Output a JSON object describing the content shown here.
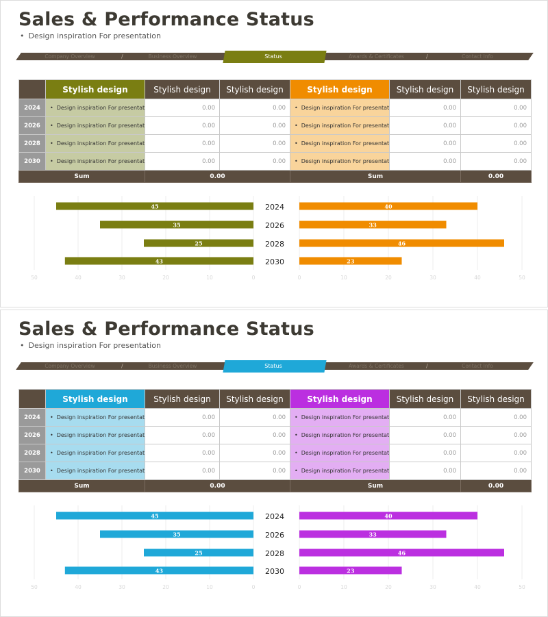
{
  "slides": [
    {
      "title": "Sales & Performance Status",
      "subtitle": "Design inspiration For presentation",
      "nav": [
        "Company Overview",
        "Business Overview",
        "Status",
        "Awards & Certificates",
        "Contact Info"
      ],
      "nav_active": "Status",
      "colors": {
        "left_accent": "#7a7e12",
        "left_light": "#c6cba3",
        "right_accent": "#f08c00",
        "right_light": "#f9d49b"
      },
      "table": {
        "left_headers": [
          "Stylish design",
          "Stylish design",
          "Stylish design"
        ],
        "right_headers": [
          "Stylish design",
          "Stylish design",
          "Stylish design"
        ],
        "rows": [
          {
            "year": "2024",
            "left_desc": "Design inspiration For presentation",
            "left_v1": "0.00",
            "left_v2": "0.00",
            "right_desc": "Design inspiration For presentation",
            "right_v1": "0.00",
            "right_v2": "0.00"
          },
          {
            "year": "2026",
            "left_desc": "Design inspiration For presentation",
            "left_v1": "0.00",
            "left_v2": "0.00",
            "right_desc": "Design inspiration For presentation",
            "right_v1": "0.00",
            "right_v2": "0.00"
          },
          {
            "year": "2028",
            "left_desc": "Design inspiration For presentation",
            "left_v1": "0.00",
            "left_v2": "0.00",
            "right_desc": "Design inspiration For presentation",
            "right_v1": "0.00",
            "right_v2": "0.00"
          },
          {
            "year": "2030",
            "left_desc": "Design inspiration For presentation",
            "left_v1": "0.00",
            "left_v2": "0.00",
            "right_desc": "Design inspiration For presentation",
            "right_v1": "0.00",
            "right_v2": "0.00"
          }
        ],
        "sum_label_left": "Sum",
        "sum_value_left": "0.00",
        "sum_label_right": "Sum",
        "sum_value_right": "0.00"
      }
    },
    {
      "title": "Sales & Performance Status",
      "subtitle": "Design inspiration For presentation",
      "nav": [
        "Company Overview",
        "Business Overview",
        "Status",
        "Awards & Certificates",
        "Contact Info"
      ],
      "nav_active": "Status",
      "colors": {
        "left_accent": "#1fa8d8",
        "left_light": "#a7dcef",
        "right_accent": "#bb2fe0",
        "right_light": "#e3aef3"
      },
      "table": {
        "left_headers": [
          "Stylish design",
          "Stylish design",
          "Stylish design"
        ],
        "right_headers": [
          "Stylish design",
          "Stylish design",
          "Stylish design"
        ],
        "rows": [
          {
            "year": "2024",
            "left_desc": "Design inspiration For presentation",
            "left_v1": "0.00",
            "left_v2": "0.00",
            "right_desc": "Design inspiration For presentation",
            "right_v1": "0.00",
            "right_v2": "0.00"
          },
          {
            "year": "2026",
            "left_desc": "Design inspiration For presentation",
            "left_v1": "0.00",
            "left_v2": "0.00",
            "right_desc": "Design inspiration For presentation",
            "right_v1": "0.00",
            "right_v2": "0.00"
          },
          {
            "year": "2028",
            "left_desc": "Design inspiration For presentation",
            "left_v1": "0.00",
            "left_v2": "0.00",
            "right_desc": "Design inspiration For presentation",
            "right_v1": "0.00",
            "right_v2": "0.00"
          },
          {
            "year": "2030",
            "left_desc": "Design inspiration For presentation",
            "left_v1": "0.00",
            "left_v2": "0.00",
            "right_desc": "Design inspiration For presentation",
            "right_v1": "0.00",
            "right_v2": "0.00"
          }
        ],
        "sum_label_left": "Sum",
        "sum_value_left": "0.00",
        "sum_label_right": "Sum",
        "sum_value_right": "0.00"
      }
    }
  ],
  "chart_data": [
    {
      "type": "bar",
      "categories": [
        "2024",
        "2026",
        "2028",
        "2030"
      ],
      "series": [
        {
          "values": [
            45,
            35,
            25,
            43
          ]
        },
        {
          "values": [
            40,
            33,
            46,
            23
          ]
        }
      ],
      "left_axis": {
        "ticks": [
          50,
          40,
          30,
          20,
          10,
          0
        ],
        "xlim": [
          0,
          50
        ]
      },
      "right_axis": {
        "ticks": [
          0,
          10,
          20,
          30,
          40,
          50
        ],
        "xlim": [
          0,
          50
        ]
      },
      "orientation": "horizontal-butterfly",
      "grid": true
    },
    {
      "type": "bar",
      "categories": [
        "2024",
        "2026",
        "2028",
        "2030"
      ],
      "series": [
        {
          "values": [
            45,
            35,
            25,
            43
          ]
        },
        {
          "values": [
            40,
            33,
            46,
            23
          ]
        }
      ],
      "left_axis": {
        "ticks": [
          50,
          40,
          30,
          20,
          10,
          0
        ],
        "xlim": [
          0,
          50
        ]
      },
      "right_axis": {
        "ticks": [
          0,
          10,
          20,
          30,
          40,
          50
        ],
        "xlim": [
          0,
          50
        ]
      },
      "orientation": "horizontal-butterfly",
      "grid": true
    }
  ]
}
